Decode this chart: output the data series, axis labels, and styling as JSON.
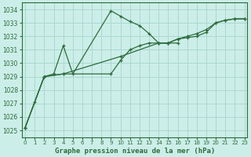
{
  "xlabel": "Graphe pression niveau de la mer (hPa)",
  "bg_color": "#cceee8",
  "grid_color": "#aad8d0",
  "line_color": "#2d6b3c",
  "series": [
    {
      "x": [
        0,
        1,
        2,
        3,
        4,
        5,
        9,
        10,
        11,
        12,
        13,
        14,
        15,
        16
      ],
      "y": [
        1025.2,
        1027.1,
        1029.0,
        1029.2,
        1031.3,
        1029.2,
        1033.9,
        1033.5,
        1033.1,
        1032.8,
        1032.2,
        1031.5,
        1031.5,
        1031.5
      ]
    },
    {
      "x": [
        0,
        2,
        4,
        10,
        14,
        15,
        16,
        17,
        18,
        19,
        20,
        21,
        22,
        23
      ],
      "y": [
        1025.2,
        1029.0,
        1029.2,
        1030.5,
        1031.5,
        1031.5,
        1031.8,
        1031.9,
        1032.0,
        1032.3,
        1033.0,
        1033.2,
        1033.3,
        1033.3
      ]
    },
    {
      "x": [
        0,
        2,
        4,
        9,
        10,
        11,
        12,
        13,
        14,
        15,
        16,
        17,
        18,
        19,
        20,
        21,
        22,
        23
      ],
      "y": [
        1025.2,
        1029.0,
        1029.2,
        1029.2,
        1030.2,
        1031.0,
        1031.3,
        1031.5,
        1031.5,
        1031.5,
        1031.8,
        1032.0,
        1032.2,
        1032.5,
        1033.0,
        1033.2,
        1033.3,
        1033.3
      ]
    }
  ],
  "ylim": [
    1024.5,
    1034.5
  ],
  "xlim": [
    -0.3,
    23.3
  ],
  "yticks": [
    1025,
    1026,
    1027,
    1028,
    1029,
    1030,
    1031,
    1032,
    1033,
    1034
  ],
  "xticks": [
    0,
    1,
    2,
    3,
    4,
    5,
    6,
    7,
    8,
    9,
    10,
    11,
    12,
    13,
    14,
    15,
    16,
    17,
    18,
    19,
    20,
    21,
    22,
    23
  ]
}
